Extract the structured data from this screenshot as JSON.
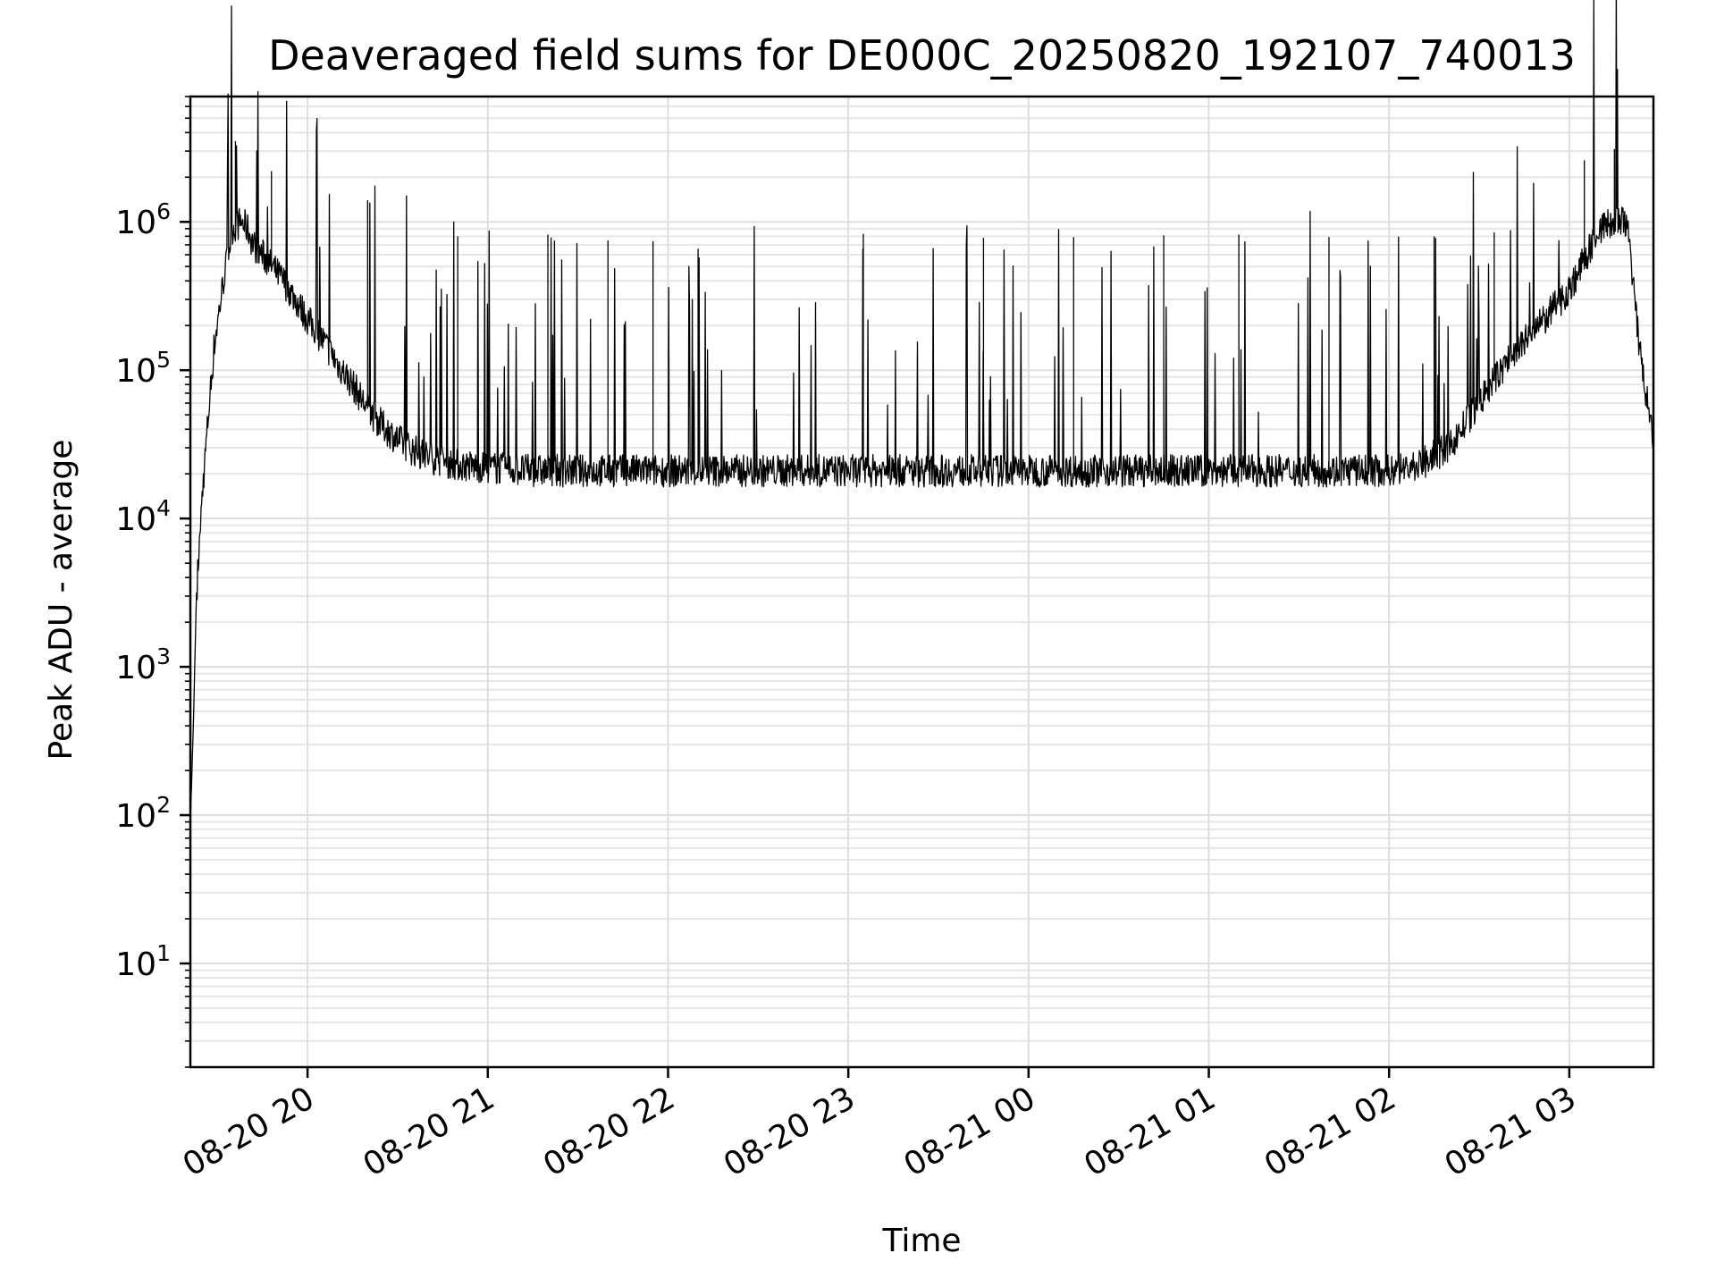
{
  "chart_data": {
    "type": "line",
    "title": "Deaveraged field sums for DE000C_20250820_192107_740013",
    "xlabel": "Time",
    "ylabel": "Peak ADU - average",
    "yscale": "log",
    "ylim": [
      2,
      7000000
    ],
    "xlim": [
      "2025-08-20 19:21",
      "2025-08-21 03:28"
    ],
    "grid": true,
    "x_ticks": [
      {
        "value": "2025-08-20 20:00",
        "label": "08-20 20"
      },
      {
        "value": "2025-08-20 21:00",
        "label": "08-20 21"
      },
      {
        "value": "2025-08-20 22:00",
        "label": "08-20 22"
      },
      {
        "value": "2025-08-20 23:00",
        "label": "08-20 23"
      },
      {
        "value": "2025-08-21 00:00",
        "label": "08-21 00"
      },
      {
        "value": "2025-08-21 01:00",
        "label": "08-21 01"
      },
      {
        "value": "2025-08-21 02:00",
        "label": "08-21 02"
      },
      {
        "value": "2025-08-21 03:00",
        "label": "08-21 03"
      }
    ],
    "y_ticks": [
      {
        "value": 10,
        "base": "10",
        "exp": "1"
      },
      {
        "value": 100,
        "base": "10",
        "exp": "2"
      },
      {
        "value": 1000,
        "base": "10",
        "exp": "3"
      },
      {
        "value": 10000,
        "base": "10",
        "exp": "4"
      },
      {
        "value": 100000,
        "base": "10",
        "exp": "5"
      },
      {
        "value": 1000000,
        "base": "10",
        "exp": "6"
      }
    ],
    "series": [
      {
        "color": "#000000",
        "x": [
          "2025-08-20 19:21",
          "2025-08-20 19:22",
          "2025-08-20 19:23",
          "2025-08-20 19:25",
          "2025-08-20 19:27",
          "2025-08-20 19:29",
          "2025-08-20 19:32",
          "2025-08-20 19:35",
          "2025-08-20 19:38",
          "2025-08-20 19:40",
          "2025-08-20 19:42",
          "2025-08-20 19:45",
          "2025-08-20 19:48",
          "2025-08-20 19:52",
          "2025-08-20 19:56",
          "2025-08-20 20:00",
          "2025-08-20 20:05",
          "2025-08-20 20:10",
          "2025-08-20 20:15",
          "2025-08-20 20:20",
          "2025-08-20 20:25",
          "2025-08-20 20:30",
          "2025-08-20 20:35",
          "2025-08-20 20:40",
          "2025-08-20 20:50",
          "2025-08-20 21:00",
          "2025-08-20 21:15",
          "2025-08-20 21:30",
          "2025-08-20 22:00",
          "2025-08-20 22:30",
          "2025-08-20 23:00",
          "2025-08-20 23:30",
          "2025-08-21 00:00",
          "2025-08-21 00:30",
          "2025-08-21 01:00",
          "2025-08-21 01:30",
          "2025-08-21 01:50",
          "2025-08-21 02:00",
          "2025-08-21 02:10",
          "2025-08-21 02:20",
          "2025-08-21 02:30",
          "2025-08-21 02:40",
          "2025-08-21 02:50",
          "2025-08-21 03:00",
          "2025-08-21 03:05",
          "2025-08-21 03:10",
          "2025-08-21 03:15",
          "2025-08-21 03:18",
          "2025-08-21 03:20",
          "2025-08-21 03:22",
          "2025-08-21 03:24",
          "2025-08-21 03:26",
          "2025-08-21 03:28"
        ],
        "y": [
          90,
          400,
          3000,
          15000,
          50000,
          150000,
          400000,
          900000,
          1000000,
          900000,
          700000,
          600000,
          500000,
          400000,
          300000,
          220000,
          160000,
          110000,
          80000,
          55000,
          42000,
          34000,
          29000,
          26000,
          23000,
          22000,
          21000,
          21000,
          21000,
          21000,
          21000,
          21000,
          21000,
          21000,
          21000,
          21000,
          21000,
          21000,
          23000,
          30000,
          60000,
          120000,
          200000,
          350000,
          550000,
          900000,
          1000000,
          1000000,
          800000,
          250000,
          110000,
          60000,
          30000
        ]
      }
    ],
    "spikes": [
      {
        "x": "2025-08-20 19:36",
        "y": 3500000
      },
      {
        "x": "2025-08-20 19:48",
        "y": 2200000
      },
      {
        "x": "2025-08-20 20:20",
        "y": 1400000
      },
      {
        "x": "2025-08-20 20:50",
        "y": 800000
      },
      {
        "x": "2025-08-20 21:20",
        "y": 820000
      },
      {
        "x": "2025-08-20 21:40",
        "y": 750000
      },
      {
        "x": "2025-08-20 21:55",
        "y": 740000
      },
      {
        "x": "2025-08-20 22:10",
        "y": 660000
      },
      {
        "x": "2025-08-20 23:05",
        "y": 830000
      },
      {
        "x": "2025-08-20 23:45",
        "y": 780000
      },
      {
        "x": "2025-08-21 00:15",
        "y": 790000
      },
      {
        "x": "2025-08-21 00:45",
        "y": 810000
      },
      {
        "x": "2025-08-21 01:10",
        "y": 820000
      },
      {
        "x": "2025-08-21 01:40",
        "y": 790000
      },
      {
        "x": "2025-08-21 02:15",
        "y": 800000
      },
      {
        "x": "2025-08-21 02:35",
        "y": 850000
      },
      {
        "x": "2025-08-21 03:05",
        "y": 2600000
      },
      {
        "x": "2025-08-21 03:15",
        "y": 3100000
      }
    ]
  }
}
